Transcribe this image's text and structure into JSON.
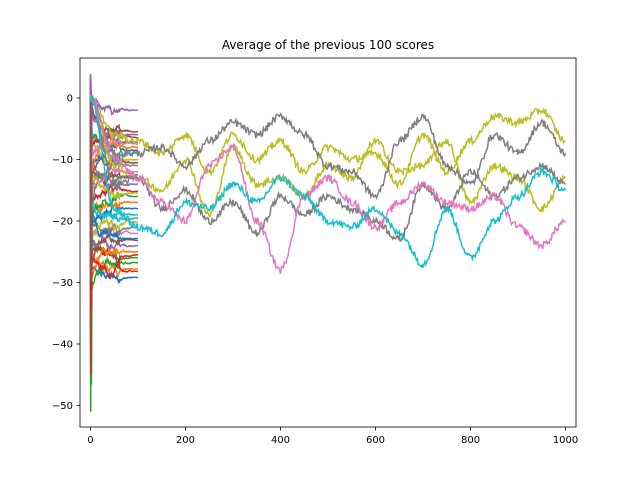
{
  "chart_data": {
    "type": "line",
    "title": "Average of the previous 100 scores",
    "xlabel": "",
    "ylabel": "",
    "xlim": [
      -22,
      1022
    ],
    "ylim": [
      -53.5,
      6.5
    ],
    "xticks": [
      0,
      200,
      400,
      600,
      800,
      1000
    ],
    "yticks": [
      0,
      -10,
      -20,
      -30,
      -40,
      -50
    ],
    "grid": false,
    "legend": "none",
    "colors": [
      "#1f77b4",
      "#ff7f0e",
      "#2ca02c",
      "#d62728",
      "#9467bd",
      "#8c564b",
      "#e377c2",
      "#7f7f7f",
      "#bcbd22",
      "#17becf"
    ],
    "short_series_end_values": [
      -29.2,
      -27.8,
      -26.0,
      -25.5,
      -24.0,
      -23.2,
      -22.0,
      -21.0,
      -20.2,
      -19.0,
      -18.0,
      -17.0,
      -16.0,
      -15.2,
      -14.0,
      -13.0,
      -12.0,
      -11.0,
      -10.0,
      -9.0,
      -8.5,
      -8.0,
      -7.2,
      -6.5,
      -6.0,
      -5.5,
      -7.5,
      -12.5,
      -15.5,
      -19.5,
      -22.8,
      -25.0,
      -26.8,
      -28.2,
      -2.0,
      -10.5
    ],
    "series": [
      {
        "color": "#bcbd22",
        "x": [
          0,
          50,
          100,
          150,
          200,
          250,
          300,
          350,
          400,
          450,
          500,
          550,
          600,
          650,
          700,
          750,
          800,
          850,
          900,
          950,
          1000
        ],
        "y": [
          0,
          -6,
          -7,
          -9,
          -6,
          -12,
          -6,
          -10,
          -7,
          -12,
          -8,
          -10,
          -9,
          -14,
          -6,
          -12,
          -7,
          -3,
          -4,
          -2,
          -7
        ]
      },
      {
        "color": "#bcbd22",
        "x": [
          0,
          50,
          100,
          150,
          200,
          250,
          300,
          350,
          400,
          450,
          500,
          550,
          600,
          650,
          700,
          750,
          800,
          850,
          900,
          950,
          1000
        ],
        "y": [
          0,
          -11,
          -13,
          -15,
          -10,
          -19,
          -8,
          -14,
          -13,
          -16,
          -11,
          -13,
          -7,
          -12,
          -11,
          -7,
          -17,
          -11,
          -13,
          -18,
          -13
        ]
      },
      {
        "color": "#7f7f7f",
        "x": [
          0,
          50,
          100,
          150,
          200,
          250,
          300,
          350,
          400,
          450,
          500,
          550,
          600,
          650,
          700,
          750,
          800,
          850,
          900,
          950,
          1000
        ],
        "y": [
          0,
          -9,
          -9,
          -8,
          -11,
          -7,
          -4,
          -6,
          -3,
          -6,
          -11,
          -12,
          -16,
          -7,
          -3,
          -11,
          -14,
          -6,
          -9,
          -4,
          -9
        ]
      },
      {
        "color": "#7f7f7f",
        "x": [
          0,
          50,
          100,
          150,
          200,
          250,
          300,
          350,
          400,
          450,
          500,
          550,
          600,
          650,
          700,
          750,
          800,
          850,
          900,
          950,
          1000
        ],
        "y": [
          0,
          -14,
          -13,
          -18,
          -15,
          -20,
          -17,
          -22,
          -16,
          -19,
          -16,
          -18,
          -20,
          -23,
          -14,
          -18,
          -12,
          -16,
          -13,
          -11,
          -14
        ]
      },
      {
        "color": "#e377c2",
        "x": [
          0,
          50,
          100,
          150,
          200,
          250,
          300,
          350,
          400,
          450,
          500,
          550,
          600,
          650,
          700,
          750,
          800,
          850,
          900,
          950,
          1000
        ],
        "y": [
          0,
          -10,
          -13,
          -17,
          -20,
          -11,
          -8,
          -20,
          -28,
          -16,
          -13,
          -17,
          -21,
          -17,
          -14,
          -17,
          -18,
          -16,
          -21,
          -24,
          -20
        ]
      },
      {
        "color": "#17becf",
        "x": [
          0,
          50,
          100,
          150,
          200,
          250,
          300,
          350,
          400,
          450,
          500,
          550,
          600,
          650,
          700,
          750,
          800,
          850,
          900,
          950,
          1000
        ],
        "y": [
          0,
          -18,
          -21,
          -22,
          -17,
          -18,
          -14,
          -17,
          -13,
          -16,
          -20,
          -21,
          -18,
          -22,
          -27,
          -18,
          -26,
          -20,
          -16,
          -12,
          -15
        ]
      }
    ]
  }
}
